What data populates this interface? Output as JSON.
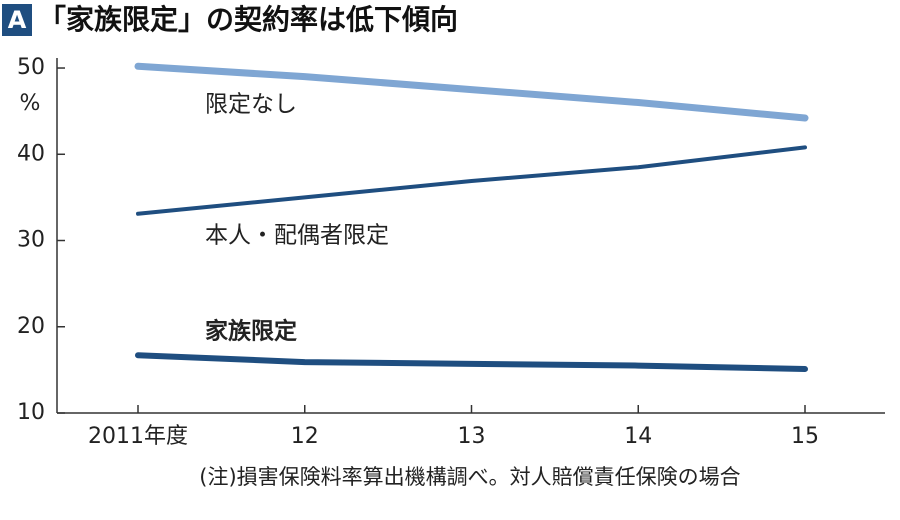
{
  "badge": "A",
  "chart_data": {
    "type": "line",
    "title": "「家族限定」の契約率は低下傾向",
    "y_unit": "%",
    "note": "(注)損害保険料率算出機構調べ。対人賠償責任保険の場合",
    "categories": [
      "2011年度",
      "12",
      "13",
      "14",
      "15"
    ],
    "series": [
      {
        "name": "限定なし",
        "color": "#7fa6d3",
        "values": [
          50.2,
          49.0,
          47.5,
          46.0,
          44.2
        ]
      },
      {
        "name": "本人・配偶者限定",
        "color": "#1f4e80",
        "values": [
          33.1,
          35.0,
          36.9,
          38.5,
          40.8
        ]
      },
      {
        "name": "家族限定",
        "color": "#1f4e80",
        "values": [
          16.7,
          15.9,
          15.7,
          15.5,
          15.1
        ]
      }
    ],
    "ylim": [
      10,
      51
    ],
    "yticks": [
      10,
      20,
      30,
      40,
      50
    ]
  }
}
